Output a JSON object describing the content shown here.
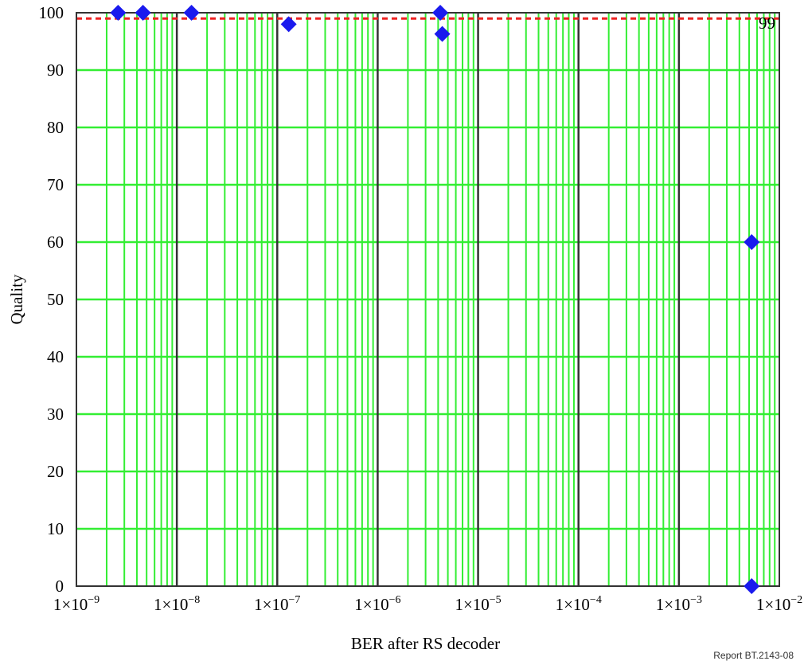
{
  "chart_data": {
    "type": "scatter",
    "title": "",
    "xlabel": "BER after RS decoder",
    "ylabel": "Quality",
    "x_scale": "log",
    "xlim": [
      1e-09,
      0.01
    ],
    "ylim": [
      0,
      100
    ],
    "x_ticks": [
      1e-09,
      1e-08,
      1e-07,
      1e-06,
      1e-05,
      0.0001,
      0.001,
      0.01
    ],
    "x_tick_labels": [
      {
        "base": "1×10",
        "exp": "−9"
      },
      {
        "base": "1×10",
        "exp": "−8"
      },
      {
        "base": "1×10",
        "exp": "−7"
      },
      {
        "base": "1×10",
        "exp": "−6"
      },
      {
        "base": "1×10",
        "exp": "−5"
      },
      {
        "base": "1×10",
        "exp": "−4"
      },
      {
        "base": "1×10",
        "exp": "−3"
      },
      {
        "base": "1×10",
        "exp": "−2"
      }
    ],
    "y_ticks": [
      0,
      10,
      20,
      30,
      40,
      50,
      60,
      70,
      80,
      90,
      100
    ],
    "grid": true,
    "colors": {
      "grid_minor": "#33ee33",
      "grid_decade": "#333333",
      "marker": "#1a1aee",
      "reference_line": "#ee2222"
    },
    "reference_line": {
      "y": 99,
      "label": "99",
      "style": "dashed"
    },
    "series": [
      {
        "marker": "diamond",
        "points": [
          {
            "x": 2.6e-09,
            "y": 100
          },
          {
            "x": 4.6e-09,
            "y": 100
          },
          {
            "x": 1.4e-08,
            "y": 100
          },
          {
            "x": 1.3e-07,
            "y": 98
          },
          {
            "x": 4.2e-06,
            "y": 100
          },
          {
            "x": 4.4e-06,
            "y": 96.3
          },
          {
            "x": 0.0053,
            "y": 60
          },
          {
            "x": 0.0053,
            "y": 0
          }
        ]
      }
    ]
  },
  "footnote": "Report BT.2143-08"
}
